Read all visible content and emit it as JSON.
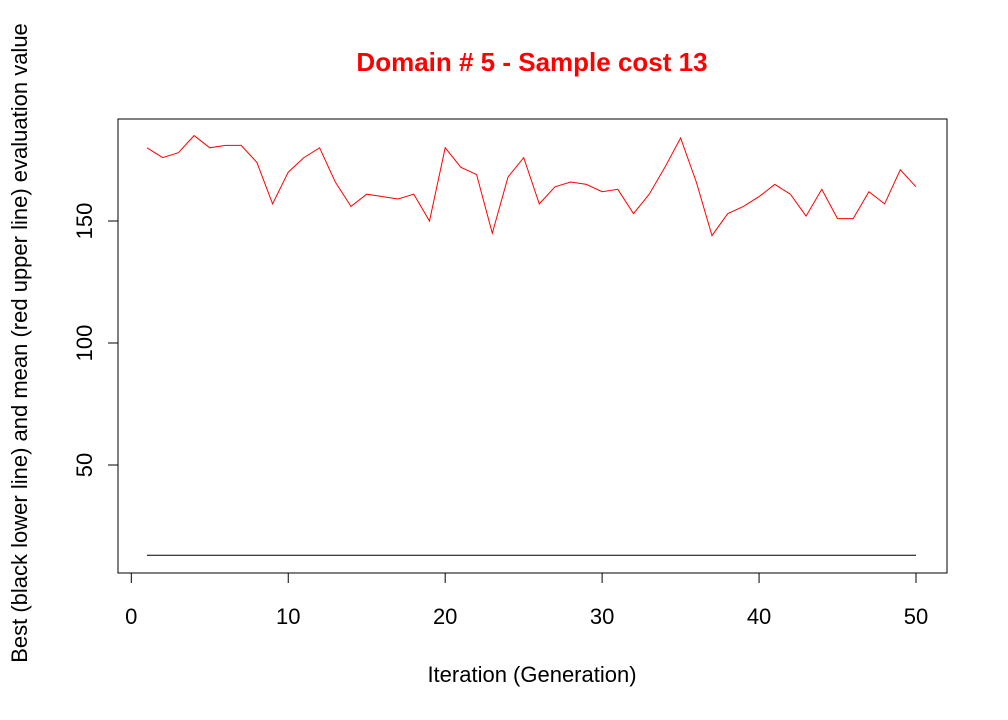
{
  "chart_data": {
    "type": "line",
    "title": "Domain # 5  - Sample cost 13",
    "title_color": "#ff0000",
    "xlabel": "Iteration (Generation)",
    "ylabel": "Best (black lower line) and mean (red upper line) evaluation value",
    "xlim": [
      1,
      50
    ],
    "ylim": [
      13,
      185
    ],
    "x_ticks": [
      0,
      10,
      20,
      30,
      40,
      50
    ],
    "y_ticks": [
      50,
      100,
      150
    ],
    "grid": false,
    "x": [
      1,
      2,
      3,
      4,
      5,
      6,
      7,
      8,
      9,
      10,
      11,
      12,
      13,
      14,
      15,
      16,
      17,
      18,
      19,
      20,
      21,
      22,
      23,
      24,
      25,
      26,
      27,
      28,
      29,
      30,
      31,
      32,
      33,
      34,
      35,
      36,
      37,
      38,
      39,
      40,
      41,
      42,
      43,
      44,
      45,
      46,
      47,
      48,
      49,
      50
    ],
    "series": [
      {
        "color": "#ff0000",
        "values": [
          180,
          176,
          178,
          185,
          180,
          181,
          181,
          174,
          157,
          170,
          176,
          180,
          166,
          156,
          161,
          160,
          159,
          161,
          150,
          180,
          172,
          169,
          145,
          168,
          176,
          157,
          164,
          166,
          165,
          162,
          163,
          153,
          161,
          172,
          184,
          166,
          144,
          153,
          156,
          160,
          165,
          161,
          152,
          163,
          151,
          151,
          162,
          157,
          171,
          164
        ]
      },
      {
        "color": "#000000",
        "values": [
          13,
          13,
          13,
          13,
          13,
          13,
          13,
          13,
          13,
          13,
          13,
          13,
          13,
          13,
          13,
          13,
          13,
          13,
          13,
          13,
          13,
          13,
          13,
          13,
          13,
          13,
          13,
          13,
          13,
          13,
          13,
          13,
          13,
          13,
          13,
          13,
          13,
          13,
          13,
          13,
          13,
          13,
          13,
          13,
          13,
          13,
          13,
          13,
          13,
          13
        ]
      }
    ]
  }
}
